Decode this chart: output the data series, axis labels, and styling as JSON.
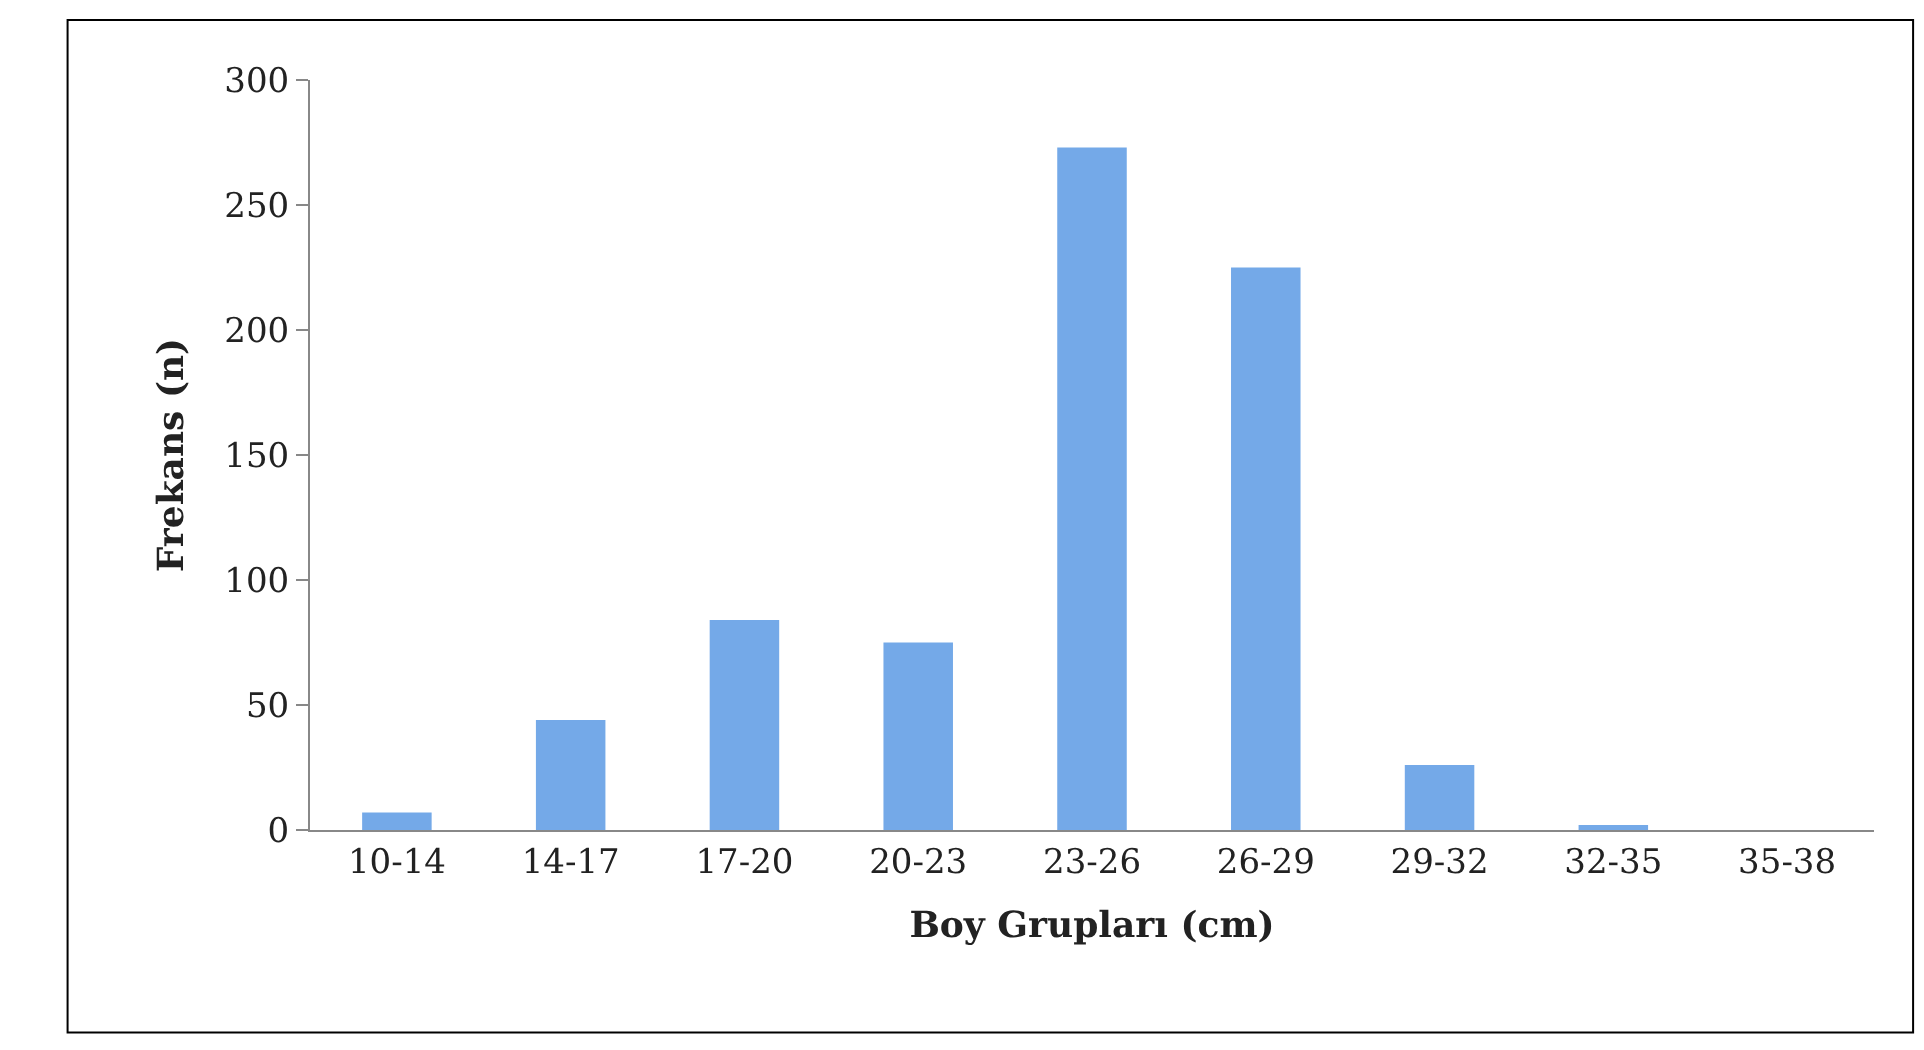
{
  "chart_data": {
    "type": "bar",
    "xlabel": "Boy Grupları (cm)",
    "ylabel": "Frekans (n)",
    "categories": [
      "10-14",
      "14-17",
      "17-20",
      "20-23",
      "23-26",
      "26-29",
      "29-32",
      "32-35",
      "35-38"
    ],
    "values": [
      7,
      44,
      84,
      75,
      273,
      225,
      26,
      2,
      0
    ],
    "color": "#74a9e8",
    "ylim": [
      0,
      300
    ],
    "yticks": [
      0,
      50,
      100,
      150,
      200,
      250,
      300
    ]
  }
}
